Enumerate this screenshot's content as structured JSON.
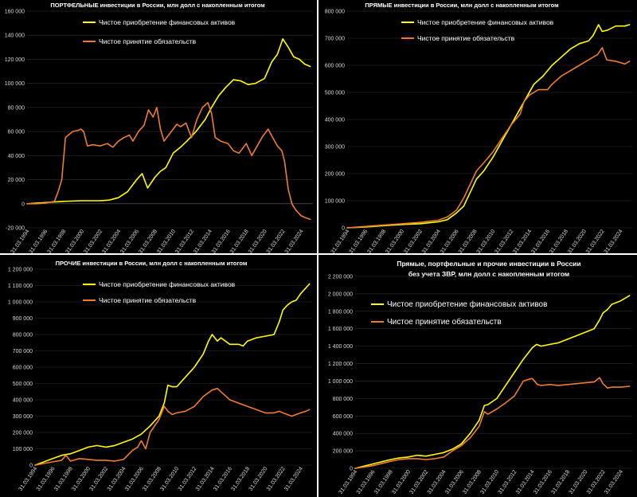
{
  "chart_data": [
    {
      "type": "line",
      "title": "ПОРТФЕЛЬНЫЕ инвестиции в России, млн долл с накопленным итогом",
      "subtitle": "",
      "xlabel": "",
      "ylabel": "",
      "x_ticks": [
        "31.03.1994",
        "31.03.1996",
        "31.03.1998",
        "31.03.2000",
        "31.03.2002",
        "31.03.2004",
        "31.03.2006",
        "31.03.2008",
        "31.03.2010",
        "31.03.2012",
        "31.03.2014",
        "31.03.2016",
        "31.03.2018",
        "31.03.2020",
        "31.03.2022",
        "31.03.2024"
      ],
      "y_ticks": [
        "-20 000",
        "0",
        "20 000",
        "40 000",
        "60 000",
        "80 000",
        "100 000",
        "120 000",
        "140 000",
        "160 000"
      ],
      "ylim": [
        -20000,
        160000
      ],
      "xlim": [
        1994.0,
        2025.3
      ],
      "grid": true,
      "legend_position": "top-center",
      "series": [
        {
          "name": "Чистое приобретение финансовых активов",
          "color": "#ffff00",
          "x": [
            1994,
            1996,
            1998,
            2000,
            2002,
            2003,
            2004,
            2005,
            2006,
            2006.6,
            2007.2,
            2008,
            2008.6,
            2009.2,
            2010,
            2010.8,
            2011.5,
            2012.5,
            2013.5,
            2014.2,
            2015,
            2015.8,
            2016.6,
            2017.4,
            2018.2,
            2019,
            2020,
            2020.8,
            2021.4,
            2022,
            2022.6,
            2023.2,
            2023.8,
            2024.4,
            2025
          ],
          "y": [
            0,
            1000,
            2000,
            2500,
            2500,
            3000,
            5000,
            10000,
            20000,
            25000,
            13000,
            22000,
            27000,
            30000,
            42000,
            47000,
            52000,
            60000,
            70000,
            80000,
            90000,
            97000,
            103000,
            102000,
            99000,
            100000,
            104000,
            118000,
            124000,
            137000,
            130000,
            122000,
            120000,
            116000,
            114000
          ]
        },
        {
          "name": "Чистое принятие обязательств",
          "color": "#ed7d31",
          "x": [
            1994,
            1995,
            1996,
            1997,
            1997.4,
            1997.8,
            1998.2,
            1999,
            1999.6,
            1999.9,
            2000.2,
            2000.6,
            2001.2,
            2002,
            2002.8,
            2003.4,
            2004,
            2004.6,
            2005.2,
            2005.6,
            2006.2,
            2006.8,
            2007.3,
            2007.8,
            2008.2,
            2008.6,
            2009,
            2009.6,
            2010.4,
            2010.8,
            2011.4,
            2012,
            2012.6,
            2013.2,
            2013.8,
            2014.2,
            2014.6,
            2015.2,
            2016,
            2016.6,
            2017.2,
            2018,
            2018.6,
            2019.2,
            2019.8,
            2020.4,
            2020.9,
            2021.4,
            2021.9,
            2022.2,
            2022.6,
            2023,
            2023.4,
            2024,
            2024.6,
            2025
          ],
          "y": [
            0,
            0,
            500,
            2000,
            10000,
            20000,
            55000,
            60000,
            61000,
            62000,
            60000,
            48000,
            49000,
            48000,
            50000,
            47000,
            52000,
            55000,
            57000,
            52000,
            60000,
            65000,
            78000,
            72000,
            80000,
            62000,
            52000,
            58000,
            66000,
            64000,
            67000,
            55000,
            70000,
            80000,
            84000,
            75000,
            55000,
            52000,
            50000,
            44000,
            42000,
            50000,
            40000,
            48000,
            56000,
            62000,
            55000,
            48000,
            44000,
            35000,
            12000,
            0,
            -5000,
            -10000,
            -12000,
            -13000
          ]
        }
      ]
    },
    {
      "type": "line",
      "title": "ПРЯМЫЕ инвестиции в России, млн долл с накопленным итогом",
      "subtitle": "",
      "xlabel": "",
      "ylabel": "",
      "x_ticks": [
        "31.03.1994",
        "31.03.1996",
        "31.03.1998",
        "31.03.2000",
        "31.03.2002",
        "31.03.2004",
        "31.03.2006",
        "31.03.2008",
        "31.03.2010",
        "31.03.2012",
        "31.03.2014",
        "31.03.2016",
        "31.03.2018",
        "31.03.2020",
        "31.03.2022",
        "31.03.2024"
      ],
      "y_ticks": [
        "0",
        "100 000",
        "200 000",
        "300 000",
        "400 000",
        "500 000",
        "600 000",
        "700 000",
        "800 000"
      ],
      "ylim": [
        0,
        800000
      ],
      "xlim": [
        1994.0,
        2025.3
      ],
      "grid": true,
      "legend_position": "top-center",
      "series": [
        {
          "name": "Чистое приобретение финансовых активов",
          "color": "#ffff00",
          "x": [
            1994,
            1996,
            1998,
            2000,
            2002,
            2004,
            2005,
            2006,
            2006.8,
            2007.5,
            2008.2,
            2009,
            2010,
            2011,
            2012,
            2013,
            2013.5,
            2014.5,
            2015.5,
            2016.5,
            2017.5,
            2018.5,
            2019.5,
            2020.5,
            2021,
            2021.6,
            2022,
            2022.6,
            2023.5,
            2024.5,
            2025
          ],
          "y": [
            0,
            3000,
            8000,
            12000,
            15000,
            22000,
            30000,
            55000,
            80000,
            130000,
            180000,
            210000,
            260000,
            320000,
            380000,
            440000,
            470000,
            530000,
            560000,
            600000,
            630000,
            660000,
            680000,
            690000,
            710000,
            750000,
            725000,
            730000,
            745000,
            745000,
            750000
          ]
        },
        {
          "name": "Чистое принятие обязательств",
          "color": "#ed7d31",
          "x": [
            1994,
            1996,
            1998,
            2000,
            2002,
            2004,
            2005,
            2006,
            2006.8,
            2007.5,
            2008.2,
            2009,
            2010,
            2011,
            2012,
            2013,
            2013.4,
            2014,
            2015,
            2016,
            2016.5,
            2017.5,
            2018.5,
            2019.5,
            2020.5,
            2021.5,
            2022,
            2022.5,
            2023.5,
            2024.5,
            2025
          ],
          "y": [
            0,
            5000,
            10000,
            15000,
            20000,
            28000,
            40000,
            65000,
            110000,
            160000,
            210000,
            240000,
            280000,
            330000,
            380000,
            420000,
            465000,
            490000,
            510000,
            510000,
            530000,
            560000,
            580000,
            600000,
            620000,
            640000,
            665000,
            620000,
            615000,
            605000,
            615000
          ]
        }
      ]
    },
    {
      "type": "line",
      "title": "ПРОЧИЕ инвестиции в России, млн долл с накопленным итогом",
      "subtitle": "",
      "xlabel": "",
      "ylabel": "",
      "x_ticks": [
        "31.03.1994",
        "31.03.1996",
        "31.03.1998",
        "31.03.2000",
        "31.03.2002",
        "31.03.2004",
        "31.03.2006",
        "31.03.2008",
        "31.03.2010",
        "31.03.2012",
        "31.03.2014",
        "31.03.2016",
        "31.03.2018",
        "31.03.2020",
        "31.03.2022",
        "31.03.2024"
      ],
      "y_ticks": [
        "0",
        "100 000",
        "200 000",
        "300 000",
        "400 000",
        "500 000",
        "600 000",
        "700 000",
        "800 000",
        "900 000",
        "1 000 000",
        "1 100 000",
        "1 200 000"
      ],
      "ylim": [
        0,
        1200000
      ],
      "xlim": [
        1994.0,
        2025.3
      ],
      "grid": true,
      "legend_position": "top-center",
      "series": [
        {
          "name": "Чистое приобретение финансовых активов",
          "color": "#ffff00",
          "x": [
            1994,
            1995,
            1996,
            1997,
            1998,
            1999,
            2000,
            2001,
            2002,
            2003,
            2004,
            2005,
            2006,
            2007,
            2008,
            2008.6,
            2009,
            2009.5,
            2010,
            2011,
            2012,
            2013,
            2013.6,
            2014,
            2014.6,
            2015,
            2016,
            2017,
            2017.5,
            2018,
            2019,
            2020,
            2021,
            2021.6,
            2022,
            2022.5,
            2023,
            2023.5,
            2024,
            2024.5,
            2025
          ],
          "y": [
            0,
            20000,
            40000,
            60000,
            70000,
            90000,
            110000,
            120000,
            110000,
            120000,
            140000,
            160000,
            190000,
            240000,
            300000,
            380000,
            490000,
            480000,
            480000,
            540000,
            600000,
            680000,
            760000,
            800000,
            760000,
            780000,
            740000,
            740000,
            730000,
            760000,
            780000,
            790000,
            800000,
            880000,
            950000,
            980000,
            1000000,
            1010000,
            1050000,
            1080000,
            1110000
          ]
        },
        {
          "name": "Чистое принятие обязательств",
          "color": "#ed7d31",
          "x": [
            1994,
            1995,
            1996,
            1997,
            1997.5,
            1998,
            1999,
            2000,
            2001,
            2002,
            2003,
            2004,
            2005,
            2005.6,
            2006,
            2006.5,
            2007,
            2008,
            2008.6,
            2009,
            2009.5,
            2010,
            2011,
            2012,
            2013,
            2014,
            2014.6,
            2015,
            2016,
            2017,
            2018,
            2019,
            2020,
            2021,
            2021.6,
            2022,
            2023,
            2024,
            2024.6,
            2025
          ],
          "y": [
            0,
            10000,
            20000,
            30000,
            60000,
            25000,
            40000,
            35000,
            30000,
            30000,
            25000,
            35000,
            90000,
            110000,
            150000,
            100000,
            200000,
            280000,
            360000,
            330000,
            310000,
            320000,
            330000,
            360000,
            420000,
            460000,
            470000,
            450000,
            400000,
            380000,
            360000,
            340000,
            320000,
            320000,
            330000,
            320000,
            300000,
            320000,
            330000,
            340000
          ]
        }
      ]
    },
    {
      "type": "line",
      "title": "Прямые, портфельные и прочие инвестиции в России без учета ЗВР, млн долл с накопленным итогом",
      "subtitle": "",
      "xlabel": "",
      "ylabel": "",
      "x_ticks": [
        "31.03.1994",
        "31.03.1996",
        "31.03.1998",
        "31.03.2000",
        "31.03.2002",
        "31.03.2004",
        "31.03.2006",
        "31.03.2008",
        "31.03.2010",
        "31.03.2012",
        "31.03.2014",
        "31.03.2016",
        "31.03.2018",
        "31.03.2020",
        "31.03.2022",
        "31.03.2024"
      ],
      "y_ticks": [
        "0",
        "200 000",
        "400 000",
        "600 000",
        "800 000",
        "1 000 000",
        "1 200 000",
        "1 400 000",
        "1 600 000",
        "1 800 000",
        "2 000 000",
        "2 200 000"
      ],
      "ylim": [
        0,
        2200000
      ],
      "xlim": [
        1994.0,
        2025.3
      ],
      "grid": true,
      "legend_position": "top-center",
      "series": [
        {
          "name": "Чистое приобретение финансовых активов",
          "color": "#ffff00",
          "x": [
            1994,
            1996,
            1998,
            1999,
            2000,
            2001,
            2002,
            2003,
            2004,
            2005,
            2006,
            2007,
            2008,
            2008.6,
            2009,
            2010,
            2011,
            2012,
            2013,
            2014,
            2014.5,
            2015,
            2016,
            2017,
            2018,
            2019,
            2020,
            2021,
            2021.6,
            2022,
            2022.5,
            2023,
            2024,
            2025
          ],
          "y": [
            0,
            50000,
            100000,
            120000,
            130000,
            150000,
            140000,
            160000,
            180000,
            220000,
            280000,
            400000,
            550000,
            720000,
            730000,
            800000,
            950000,
            1100000,
            1250000,
            1380000,
            1420000,
            1400000,
            1420000,
            1440000,
            1480000,
            1520000,
            1560000,
            1600000,
            1700000,
            1780000,
            1820000,
            1880000,
            1920000,
            1980000
          ]
        },
        {
          "name": "Чистое принятие обязательств",
          "color": "#ed7d31",
          "x": [
            1994,
            1996,
            1998,
            1999,
            2000,
            2001,
            2002,
            2003,
            2004,
            2005,
            2006,
            2007,
            2008,
            2008.6,
            2009,
            2010,
            2011,
            2012,
            2013,
            2013.6,
            2014,
            2014.6,
            2015,
            2016,
            2017,
            2018,
            2019,
            2020,
            2021,
            2021.6,
            2022,
            2022.5,
            2023,
            2024,
            2025
          ],
          "y": [
            0,
            30000,
            80000,
            100000,
            110000,
            110000,
            100000,
            110000,
            130000,
            200000,
            260000,
            350000,
            480000,
            650000,
            620000,
            680000,
            750000,
            830000,
            1000000,
            1020000,
            1030000,
            960000,
            950000,
            960000,
            950000,
            960000,
            970000,
            980000,
            990000,
            1040000,
            970000,
            920000,
            930000,
            930000,
            940000
          ]
        }
      ]
    }
  ]
}
